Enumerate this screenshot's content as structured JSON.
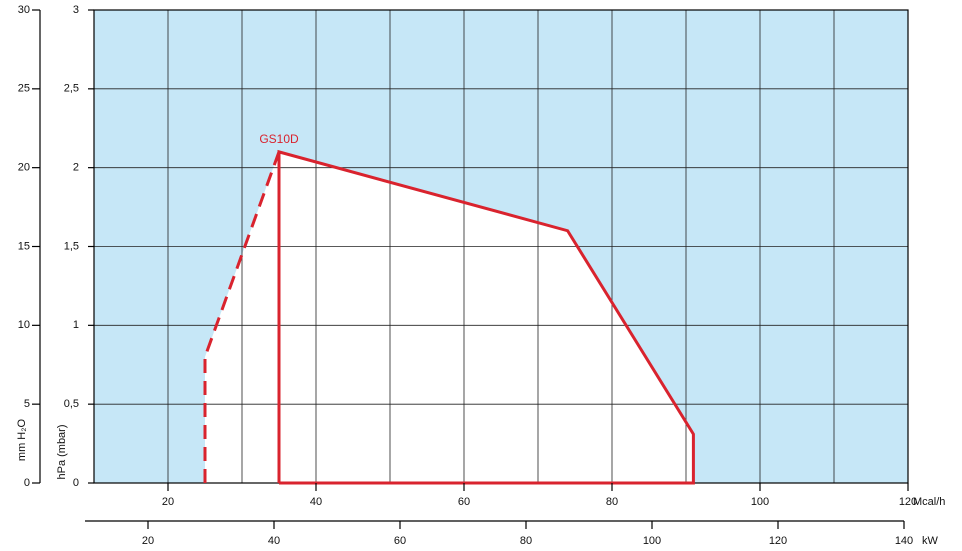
{
  "chart_data": {
    "type": "line",
    "series": [
      {
        "name": "GS10D",
        "color": "#d9232e",
        "dash": false,
        "x": [
          35,
          35,
          74,
          91,
          91,
          35
        ],
        "values": [
          0,
          2.1,
          1.6,
          0.31,
          0,
          0
        ]
      },
      {
        "color": "#d9232e",
        "dash": true,
        "x": [
          25,
          25,
          35
        ],
        "values": [
          0,
          0.8,
          2.1
        ]
      }
    ],
    "xlim": [
      10,
      120
    ],
    "xticks": [
      20,
      40,
      60,
      80,
      100,
      120
    ],
    "xlabel": "Mcal/h",
    "xgrid": [
      20,
      30,
      40,
      50,
      60,
      70,
      80,
      90,
      100,
      110
    ],
    "x2lim": [
      10,
      140
    ],
    "x2ticks": [
      20,
      40,
      60,
      80,
      100,
      120,
      140
    ],
    "x2label": "kW",
    "ylim": [
      0,
      3
    ],
    "yticks": [
      0,
      {
        "value": 0.5,
        "label": "0,5"
      },
      1,
      {
        "value": 1.5,
        "label": "1,5"
      },
      2,
      {
        "value": 2.5,
        "label": "2,5"
      },
      3
    ],
    "ylabel": "hPa (mbar)",
    "y2lim": [
      0,
      30
    ],
    "y2ticks": [
      0,
      5,
      10,
      15,
      20,
      25,
      30
    ],
    "y2label": "mm H₂O",
    "grid": true,
    "plot_background": "#c6e7f7"
  }
}
